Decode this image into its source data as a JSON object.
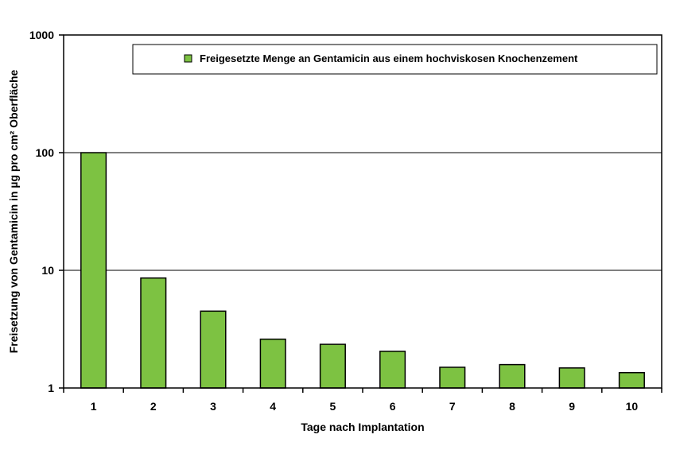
{
  "chart_data": {
    "type": "bar",
    "yscale": "log",
    "ylim": [
      1,
      1000
    ],
    "yticks": [
      "1",
      "10",
      "100",
      "1000"
    ],
    "xlabel": "Tage nach Implantation",
    "ylabel": "Freisetzung von Gentamicin in  µg pro cm² Oberfläche",
    "categories": [
      "1",
      "2",
      "3",
      "4",
      "5",
      "6",
      "7",
      "8",
      "9",
      "10"
    ],
    "series": [
      {
        "name": "Freigesetzte Menge an Gentamicin aus einem hochviskosen Knochenzement",
        "values": [
          100,
          8.6,
          4.5,
          2.6,
          2.35,
          2.05,
          1.5,
          1.58,
          1.48,
          1.35
        ]
      }
    ],
    "grid": "horizontal major",
    "legend_position": "top-right",
    "colors": {
      "bar": "#7dc242",
      "bar_stroke": "#000000",
      "grid": "#000000"
    }
  }
}
